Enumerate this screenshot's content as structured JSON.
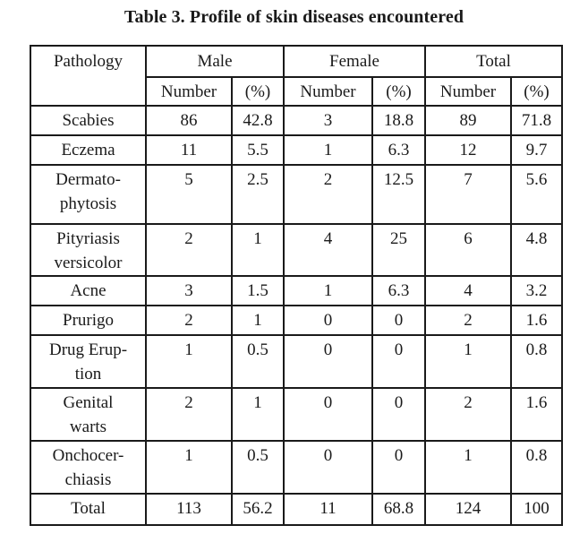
{
  "caption": "Table 3. Profile of skin diseases encountered",
  "header": {
    "pathology": "Pathology",
    "groups": [
      "Male",
      "Female",
      "Total"
    ],
    "sub": [
      "Number",
      "(%)",
      "Number",
      "(%)",
      "Number",
      "(%)"
    ]
  },
  "rows": [
    {
      "label": [
        "Scabies"
      ],
      "values": [
        "86",
        "42.8",
        "3",
        "18.8",
        "89",
        "71.8"
      ]
    },
    {
      "label": [
        "Eczema"
      ],
      "values": [
        "11",
        "5.5",
        "1",
        "6.3",
        "12",
        "9.7"
      ]
    },
    {
      "label": [
        "Dermato-",
        "phytosis"
      ],
      "values": [
        "5",
        "2.5",
        "2",
        "12.5",
        "7",
        "5.6"
      ]
    },
    {
      "label": [
        "Pityriasis",
        "versicolor"
      ],
      "values": [
        "2",
        "1",
        "4",
        "25",
        "6",
        "4.8"
      ]
    },
    {
      "label": [
        "Acne"
      ],
      "values": [
        "3",
        "1.5",
        "1",
        "6.3",
        "4",
        "3.2"
      ]
    },
    {
      "label": [
        "Prurigo"
      ],
      "values": [
        "2",
        "1",
        "0",
        "0",
        "2",
        "1.6"
      ]
    },
    {
      "label": [
        "Drug Erup-",
        "tion"
      ],
      "values": [
        "1",
        "0.5",
        "0",
        "0",
        "1",
        "0.8"
      ]
    },
    {
      "label": [
        "Genital",
        "warts"
      ],
      "values": [
        "2",
        "1",
        "0",
        "0",
        "2",
        "1.6"
      ]
    },
    {
      "label": [
        "Onchocer-",
        "chiasis"
      ],
      "values": [
        "1",
        "0.5",
        "0",
        "0",
        "1",
        "0.8"
      ]
    },
    {
      "label": [
        "Total"
      ],
      "values": [
        "113",
        "56.2",
        "11",
        "68.8",
        "124",
        "100"
      ]
    }
  ]
}
